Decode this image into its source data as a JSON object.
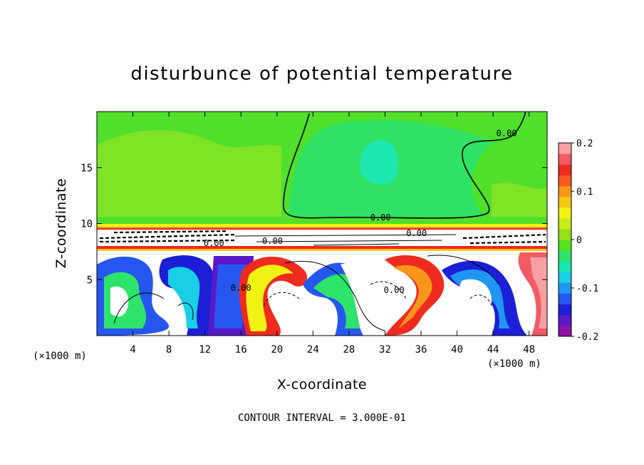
{
  "chart_data": {
    "type": "heatmap",
    "title": "disturbunce of potential temperature",
    "xlabel": "X-coordinate",
    "ylabel": "Z-coordinate",
    "x_unit_label": "(×1000 m)",
    "x_ticks": [
      4,
      8,
      12,
      16,
      20,
      24,
      28,
      32,
      36,
      40,
      44,
      48
    ],
    "y_ticks": [
      5,
      10,
      15
    ],
    "xlim": [
      0,
      50
    ],
    "ylim": [
      0,
      20
    ],
    "colorbar": {
      "range": [
        -0.2,
        0.2
      ],
      "tick_labels": [
        {
          "value": 0.2,
          "label": "0.2"
        },
        {
          "value": 0.1,
          "label": "0.1"
        },
        {
          "value": 0.0,
          "label": "0"
        },
        {
          "value": -0.1,
          "label": "-0.1"
        },
        {
          "value": -0.2,
          "label": "-0.2"
        }
      ],
      "colors": [
        "#8f12a8",
        "#5a18c8",
        "#1b1fd6",
        "#2656f0",
        "#1f97f2",
        "#18cfe6",
        "#19e6b0",
        "#2ee36c",
        "#55e11c",
        "#93e11a",
        "#c9ec1a",
        "#f0f214",
        "#f6c814",
        "#f8961c",
        "#f55a1c",
        "#ef2a1e",
        "#f25a64",
        "#f7a0a4"
      ]
    },
    "contour_labels": [
      {
        "x": 31.5,
        "z": 10.3,
        "label": "0.00"
      },
      {
        "x": 45.5,
        "z": 17.8,
        "label": "0.00"
      },
      {
        "x": 13.0,
        "z": 8.0,
        "label": "0.00"
      },
      {
        "x": 19.5,
        "z": 8.2,
        "label": "0.00"
      },
      {
        "x": 35.5,
        "z": 8.9,
        "label": "0.00"
      },
      {
        "x": 16.0,
        "z": 4.0,
        "label": "0.00"
      },
      {
        "x": 33.0,
        "z": 3.8,
        "label": "0.00"
      }
    ],
    "contour_interval_text": "CONTOUR INTERVAL = 3.000E-01"
  }
}
